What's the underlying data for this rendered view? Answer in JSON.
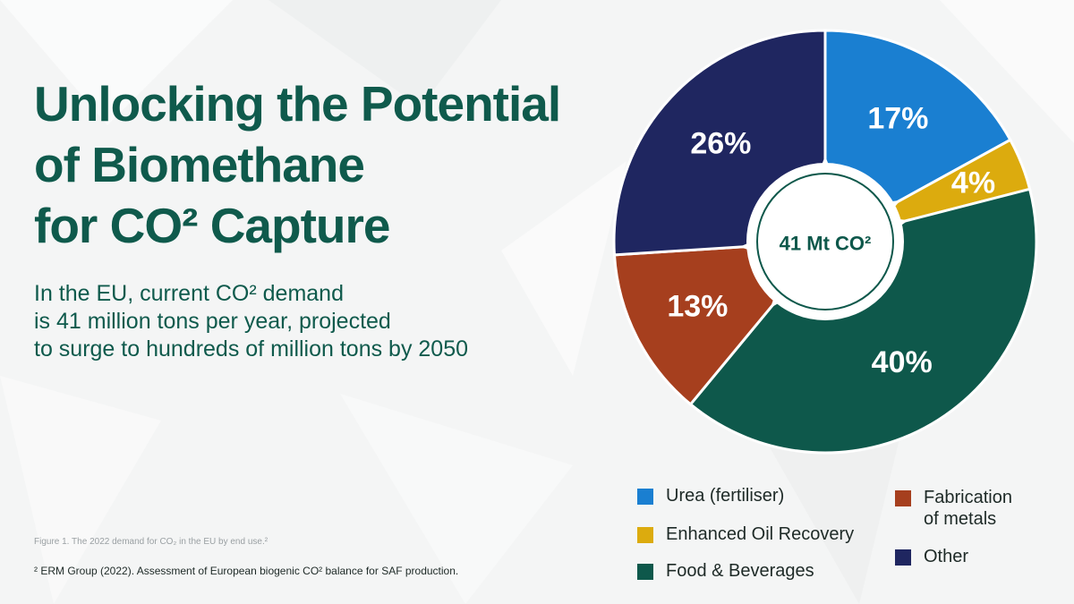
{
  "title_lines": [
    "Unlocking the Potential",
    "of Biomethane",
    "for CO² Capture"
  ],
  "subtitle_lines": [
    "In the EU, current CO² demand",
    "is 41 million tons per year, projected",
    "to surge to hundreds of million tons by 2050"
  ],
  "figure_caption": "Figure 1. The 2022 demand for CO₂ in the EU by end use.²",
  "footnote": "² ERM Group (2022). Assessment of European biogenic CO² balance for SAF production.",
  "chart_data": {
    "type": "pie",
    "center_label": "41 Mt CO²",
    "categories": [
      "Urea (fertiliser)",
      "Enhanced Oil Recovery",
      "Food & Beverages",
      "Fabrication of metals",
      "Other"
    ],
    "values": [
      17,
      4,
      40,
      13,
      26
    ],
    "labels": [
      "17%",
      "4%",
      "40%",
      "13%",
      "26%"
    ],
    "colors": [
      "#1a7fd1",
      "#dcab0e",
      "#0e584b",
      "#a63f1e",
      "#1f2660"
    ],
    "start": "top",
    "direction": "clockwise",
    "legend": [
      {
        "label_lines": [
          "Urea (fertiliser)"
        ],
        "color": "#1a7fd1"
      },
      {
        "label_lines": [
          "Enhanced Oil Recovery"
        ],
        "color": "#dcab0e"
      },
      {
        "label_lines": [
          "Food & Beverages"
        ],
        "color": "#0e584b"
      },
      {
        "label_lines": [
          "Fabrication",
          "of metals"
        ],
        "color": "#a63f1e"
      },
      {
        "label_lines": [
          "Other"
        ],
        "color": "#1f2660"
      }
    ]
  }
}
